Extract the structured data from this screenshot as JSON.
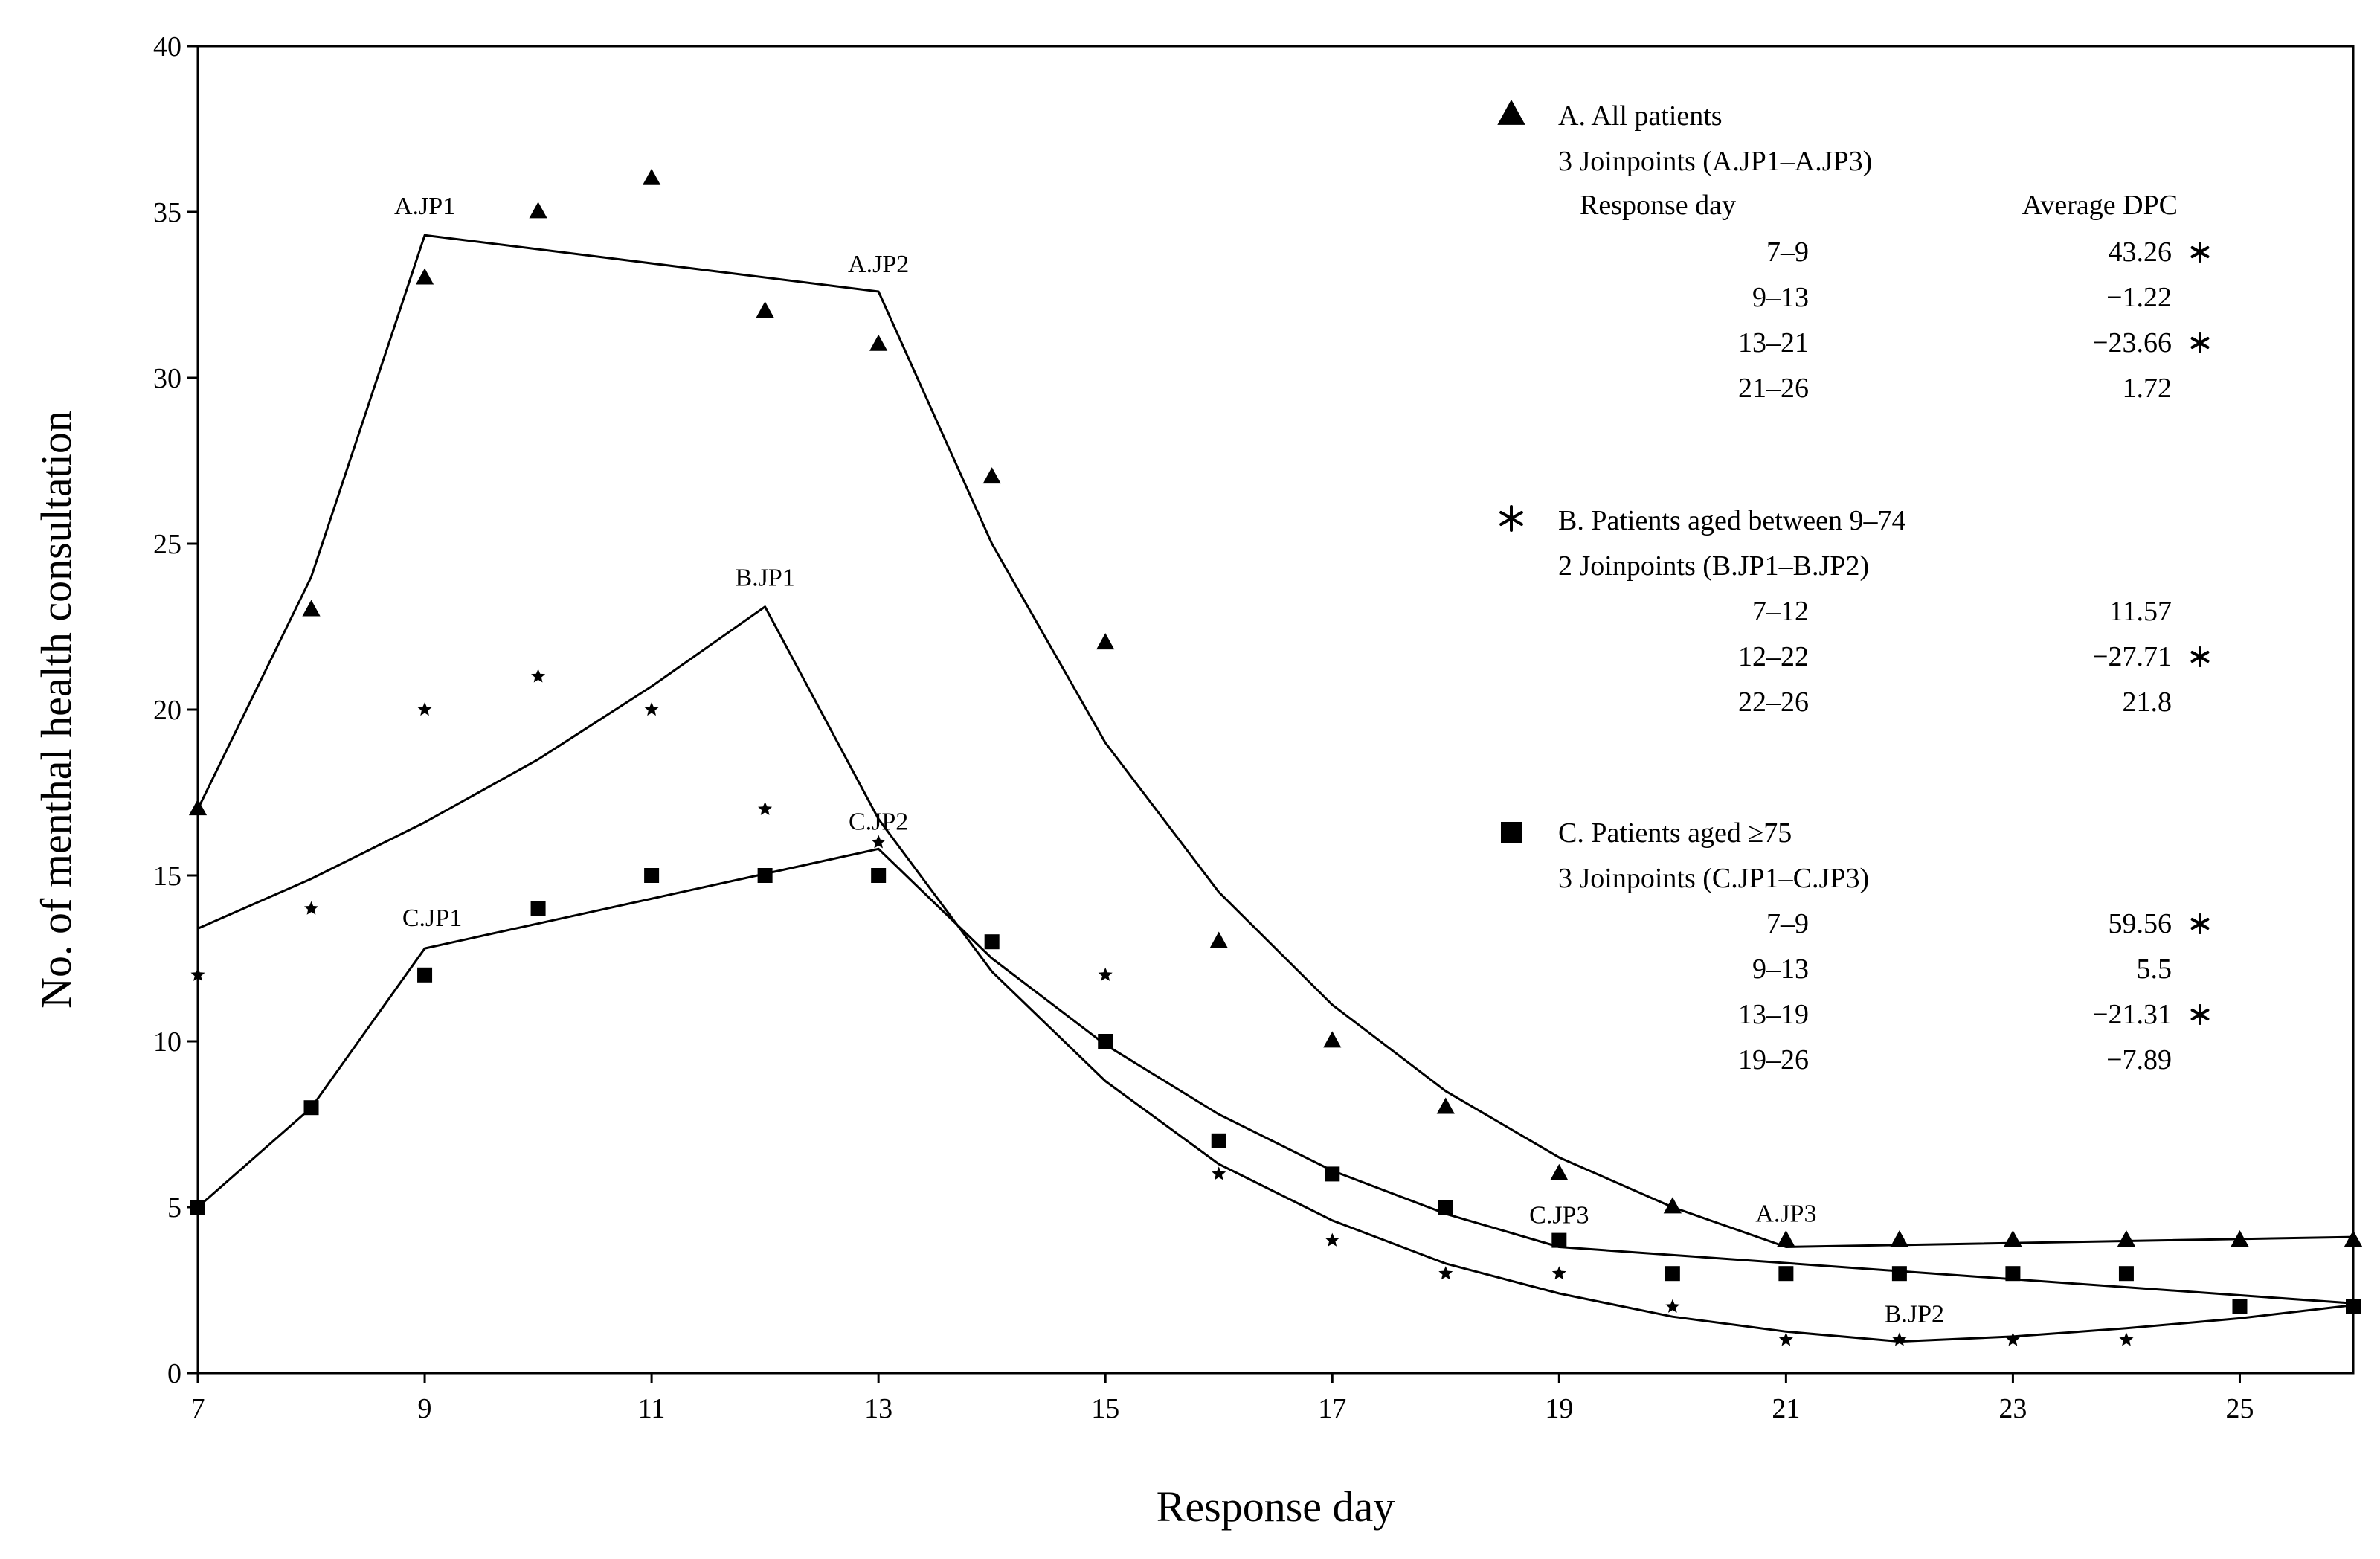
{
  "chart_data": {
    "type": "line",
    "title": "",
    "xlabel": "Response day",
    "ylabel": "No. of menthal health consultation",
    "xlim": [
      7,
      26
    ],
    "ylim": [
      0,
      40
    ],
    "xticks": [
      7,
      9,
      11,
      13,
      15,
      17,
      19,
      21,
      23,
      25
    ],
    "yticks": [
      0,
      5,
      10,
      15,
      20,
      25,
      30,
      35,
      40
    ],
    "grid": false,
    "legend_position": "top-right",
    "series": [
      {
        "id": "A",
        "name": "A. All patients",
        "marker": "triangle",
        "points": [
          [
            7,
            17
          ],
          [
            8,
            23
          ],
          [
            9,
            33
          ],
          [
            10,
            35
          ],
          [
            11,
            36
          ],
          [
            12,
            32
          ],
          [
            13,
            31
          ],
          [
            14,
            27
          ],
          [
            15,
            22
          ],
          [
            16,
            13
          ],
          [
            17,
            10
          ],
          [
            18,
            8
          ],
          [
            19,
            6
          ],
          [
            20,
            5
          ],
          [
            21,
            4
          ],
          [
            22,
            4
          ],
          [
            23,
            4
          ],
          [
            24,
            4
          ],
          [
            25,
            4
          ],
          [
            26,
            4
          ]
        ],
        "fit": [
          [
            7,
            17
          ],
          [
            8,
            24
          ],
          [
            9,
            34.3
          ],
          [
            13,
            32.6
          ],
          [
            14,
            25
          ],
          [
            15,
            19
          ],
          [
            16,
            14.5
          ],
          [
            17,
            11.1
          ],
          [
            18,
            8.5
          ],
          [
            19,
            6.5
          ],
          [
            20,
            5
          ],
          [
            21,
            3.8
          ],
          [
            26,
            4.1
          ]
        ]
      },
      {
        "id": "B",
        "name": "B. Patients aged between 9–74",
        "marker": "star",
        "points": [
          [
            7,
            12
          ],
          [
            8,
            14
          ],
          [
            9,
            20
          ],
          [
            10,
            21
          ],
          [
            11,
            20
          ],
          [
            12,
            17
          ],
          [
            13,
            16
          ],
          [
            14,
            13
          ],
          [
            15,
            12
          ],
          [
            16,
            6
          ],
          [
            17,
            4
          ],
          [
            18,
            3
          ],
          [
            19,
            3
          ],
          [
            20,
            2
          ],
          [
            21,
            1
          ],
          [
            22,
            1
          ],
          [
            23,
            1
          ],
          [
            24,
            1
          ],
          [
            25,
            2
          ],
          [
            26,
            2
          ]
        ],
        "fit": [
          [
            7,
            13.4
          ],
          [
            8,
            14.9
          ],
          [
            9,
            16.6
          ],
          [
            10,
            18.5
          ],
          [
            11,
            20.7
          ],
          [
            12,
            23.1
          ],
          [
            13,
            16.7
          ],
          [
            14,
            12.1
          ],
          [
            15,
            8.8
          ],
          [
            16,
            6.3
          ],
          [
            17,
            4.6
          ],
          [
            18,
            3.3
          ],
          [
            19,
            2.4
          ],
          [
            20,
            1.7
          ],
          [
            21,
            1.25
          ],
          [
            22,
            0.95
          ],
          [
            23,
            1.1
          ],
          [
            24,
            1.35
          ],
          [
            25,
            1.65
          ],
          [
            26,
            2.05
          ]
        ]
      },
      {
        "id": "C",
        "name": "C. Patients aged ≥75",
        "marker": "square",
        "points": [
          [
            7,
            5
          ],
          [
            8,
            8
          ],
          [
            9,
            12
          ],
          [
            10,
            14
          ],
          [
            11,
            15
          ],
          [
            12,
            15
          ],
          [
            13,
            15
          ],
          [
            14,
            13
          ],
          [
            15,
            10
          ],
          [
            16,
            7
          ],
          [
            17,
            6
          ],
          [
            18,
            5
          ],
          [
            19,
            4
          ],
          [
            20,
            3
          ],
          [
            21,
            3
          ],
          [
            22,
            3
          ],
          [
            23,
            3
          ],
          [
            24,
            3
          ],
          [
            25,
            2
          ],
          [
            26,
            2
          ]
        ],
        "fit": [
          [
            7,
            5
          ],
          [
            8,
            8
          ],
          [
            9,
            12.8
          ],
          [
            13,
            15.8
          ],
          [
            14,
            12.5
          ],
          [
            15,
            9.9
          ],
          [
            16,
            7.8
          ],
          [
            17,
            6.1
          ],
          [
            18,
            4.8
          ],
          [
            19,
            3.8
          ],
          [
            26,
            2.1
          ]
        ]
      }
    ],
    "joinpoint_labels": [
      {
        "text": "A.JP1",
        "x": 9,
        "y": 34.3
      },
      {
        "text": "A.JP2",
        "x": 13,
        "y": 32.6
      },
      {
        "text": "A.JP3",
        "x": 21,
        "y": 3.8
      },
      {
        "text": "B.JP1",
        "x": 12,
        "y": 23.1
      },
      {
        "text": "B.JP2",
        "x": 22,
        "y": 0.95
      },
      {
        "text": "C.JP1",
        "x": 9,
        "y": 12.8
      },
      {
        "text": "C.JP2",
        "x": 13,
        "y": 15.8
      },
      {
        "text": "C.JP3",
        "x": 19,
        "y": 3.8
      }
    ],
    "legend": {
      "header_day": "Response  day",
      "header_dpc": "Average  DPC",
      "groups": [
        {
          "marker": "triangle",
          "title": "A. All patients",
          "subtitle": "3 Joinpoints  (A.JP1–A.JP3)",
          "rows": [
            {
              "day": "7–9",
              "dpc": "43.26",
              "sig": true
            },
            {
              "day": "9–13",
              "dpc": "−1.22",
              "sig": false
            },
            {
              "day": "13–21",
              "dpc": "−23.66",
              "sig": true
            },
            {
              "day": "21–26",
              "dpc": "1.72",
              "sig": false
            }
          ]
        },
        {
          "marker": "asterisk",
          "title": "B. Patients aged between  9–74",
          "subtitle": "2 Joinpoints  (B.JP1–B.JP2)",
          "rows": [
            {
              "day": "7–12",
              "dpc": "11.57",
              "sig": false
            },
            {
              "day": "12–22",
              "dpc": "−27.71",
              "sig": true
            },
            {
              "day": "22–26",
              "dpc": "21.8",
              "sig": false
            }
          ]
        },
        {
          "marker": "square",
          "title": "C. Patients aged ≥75",
          "subtitle": "3 Joinpoints  (C.JP1–C.JP3)",
          "rows": [
            {
              "day": "7–9",
              "dpc": "59.56",
              "sig": true
            },
            {
              "day": "9–13",
              "dpc": "5.5",
              "sig": false
            },
            {
              "day": "13–19",
              "dpc": "−21.31",
              "sig": true
            },
            {
              "day": "19–26",
              "dpc": "−7.89",
              "sig": false
            }
          ]
        }
      ]
    }
  }
}
